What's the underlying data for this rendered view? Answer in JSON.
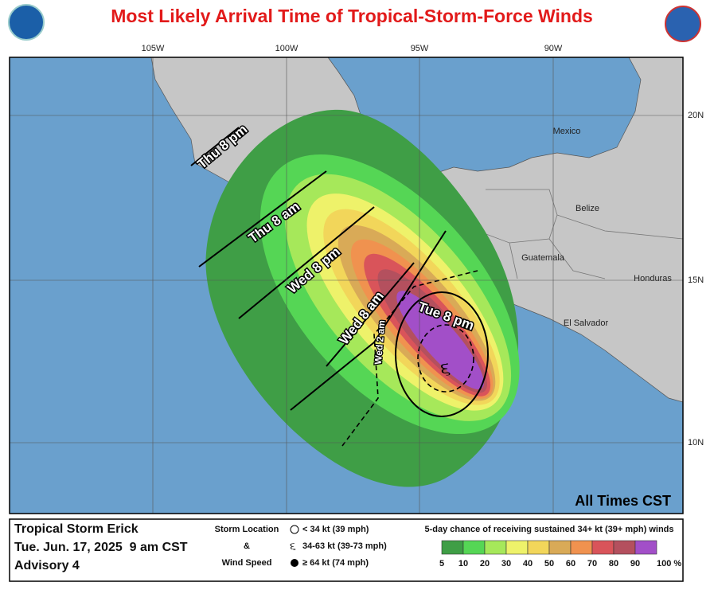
{
  "header": {
    "title": "Most Likely Arrival Time of Tropical-Storm-Force Winds"
  },
  "map": {
    "lon_labels": [
      "105W",
      "100W",
      "95W",
      "90W"
    ],
    "lat_labels": [
      "20N",
      "15N",
      "10N"
    ],
    "places": [
      "Mexico",
      "Belize",
      "Guatemala",
      "Honduras",
      "El Salvador"
    ],
    "arrival_labels": [
      "Thu 8 pm",
      "Thu 8 am",
      "Wed 8 pm",
      "Wed 8 am",
      "Tue 8 pm",
      "Wed 2 am"
    ],
    "time_zone_note": "All Times CST"
  },
  "footer": {
    "storm": "Tropical Storm Erick",
    "issued": "Tue. Jun. 17, 2025  9 am CST",
    "advisory": "Advisory 4",
    "symbol_key_title": [
      "Storm Location",
      "&",
      "Wind Speed"
    ],
    "symbol_key": [
      "< 34 kt (39 mph)",
      "34-63 kt (39-73 mph)",
      "≥ 64 kt (74 mph)"
    ],
    "colorbar": {
      "title": "5-day chance of receiving sustained 34+ kt (39+ mph) winds",
      "ticks": [
        5,
        10,
        20,
        30,
        40,
        50,
        60,
        70,
        80,
        90,
        {
          "value": 100,
          "label": "100 %"
        }
      ],
      "colors": [
        "#3f9e46",
        "#55d655",
        "#a6e85a",
        "#eef26a",
        "#f2d65a",
        "#d9aa57",
        "#f0924f",
        "#d9545a",
        "#b4505e",
        "#a24fc8"
      ]
    }
  }
}
